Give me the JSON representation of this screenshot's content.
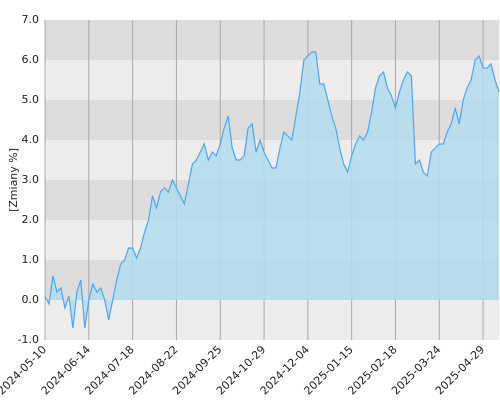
{
  "chart_data": {
    "type": "area",
    "ylabel": "[Zmiany %]",
    "xlim": [
      0,
      114
    ],
    "xticks": [
      {
        "value": 0,
        "label": "2024-05-10"
      },
      {
        "value": 11,
        "label": "2024-06-14"
      },
      {
        "value": 22,
        "label": "2024-07-18"
      },
      {
        "value": 33,
        "label": "2024-08-22"
      },
      {
        "value": 44,
        "label": "2024-09-25"
      },
      {
        "value": 55,
        "label": "2024-10-29"
      },
      {
        "value": 66,
        "label": "2024-12-04"
      },
      {
        "value": 77,
        "label": "2025-01-15"
      },
      {
        "value": 88,
        "label": "2025-02-18"
      },
      {
        "value": 99,
        "label": "2025-03-24"
      },
      {
        "value": 110,
        "label": "2025-04-29"
      }
    ],
    "ylim": [
      -1,
      7
    ],
    "yticks": [
      {
        "value": -1,
        "label": "-1.0"
      },
      {
        "value": 0,
        "label": "0.0"
      },
      {
        "value": 1,
        "label": "1.0"
      },
      {
        "value": 2,
        "label": "2.0"
      },
      {
        "value": 3,
        "label": "3.0"
      },
      {
        "value": 4,
        "label": "4.0"
      },
      {
        "value": 5,
        "label": "5.0"
      },
      {
        "value": 6,
        "label": "6.0"
      },
      {
        "value": 7,
        "label": "7.0"
      }
    ],
    "bands": true,
    "grid": true,
    "series": [
      {
        "color": "#4da6ee",
        "fill": "#b3dcee",
        "values": [
          0.1,
          -0.1,
          0.6,
          0.2,
          0.3,
          -0.2,
          0.1,
          -0.7,
          0.2,
          0.5,
          -0.7,
          0.0,
          0.4,
          0.2,
          0.3,
          0.0,
          -0.5,
          0.0,
          0.5,
          0.9,
          1.0,
          1.3,
          1.3,
          1.05,
          1.3,
          1.7,
          2.0,
          2.6,
          2.3,
          2.7,
          2.8,
          2.7,
          3.0,
          2.8,
          2.6,
          2.4,
          2.9,
          3.4,
          3.5,
          3.7,
          3.9,
          3.5,
          3.7,
          3.6,
          3.9,
          4.3,
          4.6,
          3.8,
          3.5,
          3.5,
          3.6,
          4.3,
          4.4,
          3.7,
          4.0,
          3.7,
          3.5,
          3.3,
          3.3,
          3.8,
          4.2,
          4.1,
          4.0,
          4.6,
          5.2,
          6.0,
          6.1,
          6.2,
          6.2,
          5.4,
          5.4,
          5.0,
          4.6,
          4.3,
          3.8,
          3.4,
          3.2,
          3.6,
          3.9,
          4.1,
          4.0,
          4.2,
          4.7,
          5.3,
          5.6,
          5.7,
          5.3,
          5.1,
          4.8,
          5.2,
          5.5,
          5.7,
          5.6,
          3.4,
          3.5,
          3.2,
          3.1,
          3.7,
          3.8,
          3.9,
          3.9,
          4.2,
          4.4,
          4.8,
          4.4,
          5.0,
          5.3,
          5.5,
          6.0,
          6.1,
          5.8,
          5.8,
          5.9,
          5.5,
          5.2
        ]
      }
    ]
  }
}
